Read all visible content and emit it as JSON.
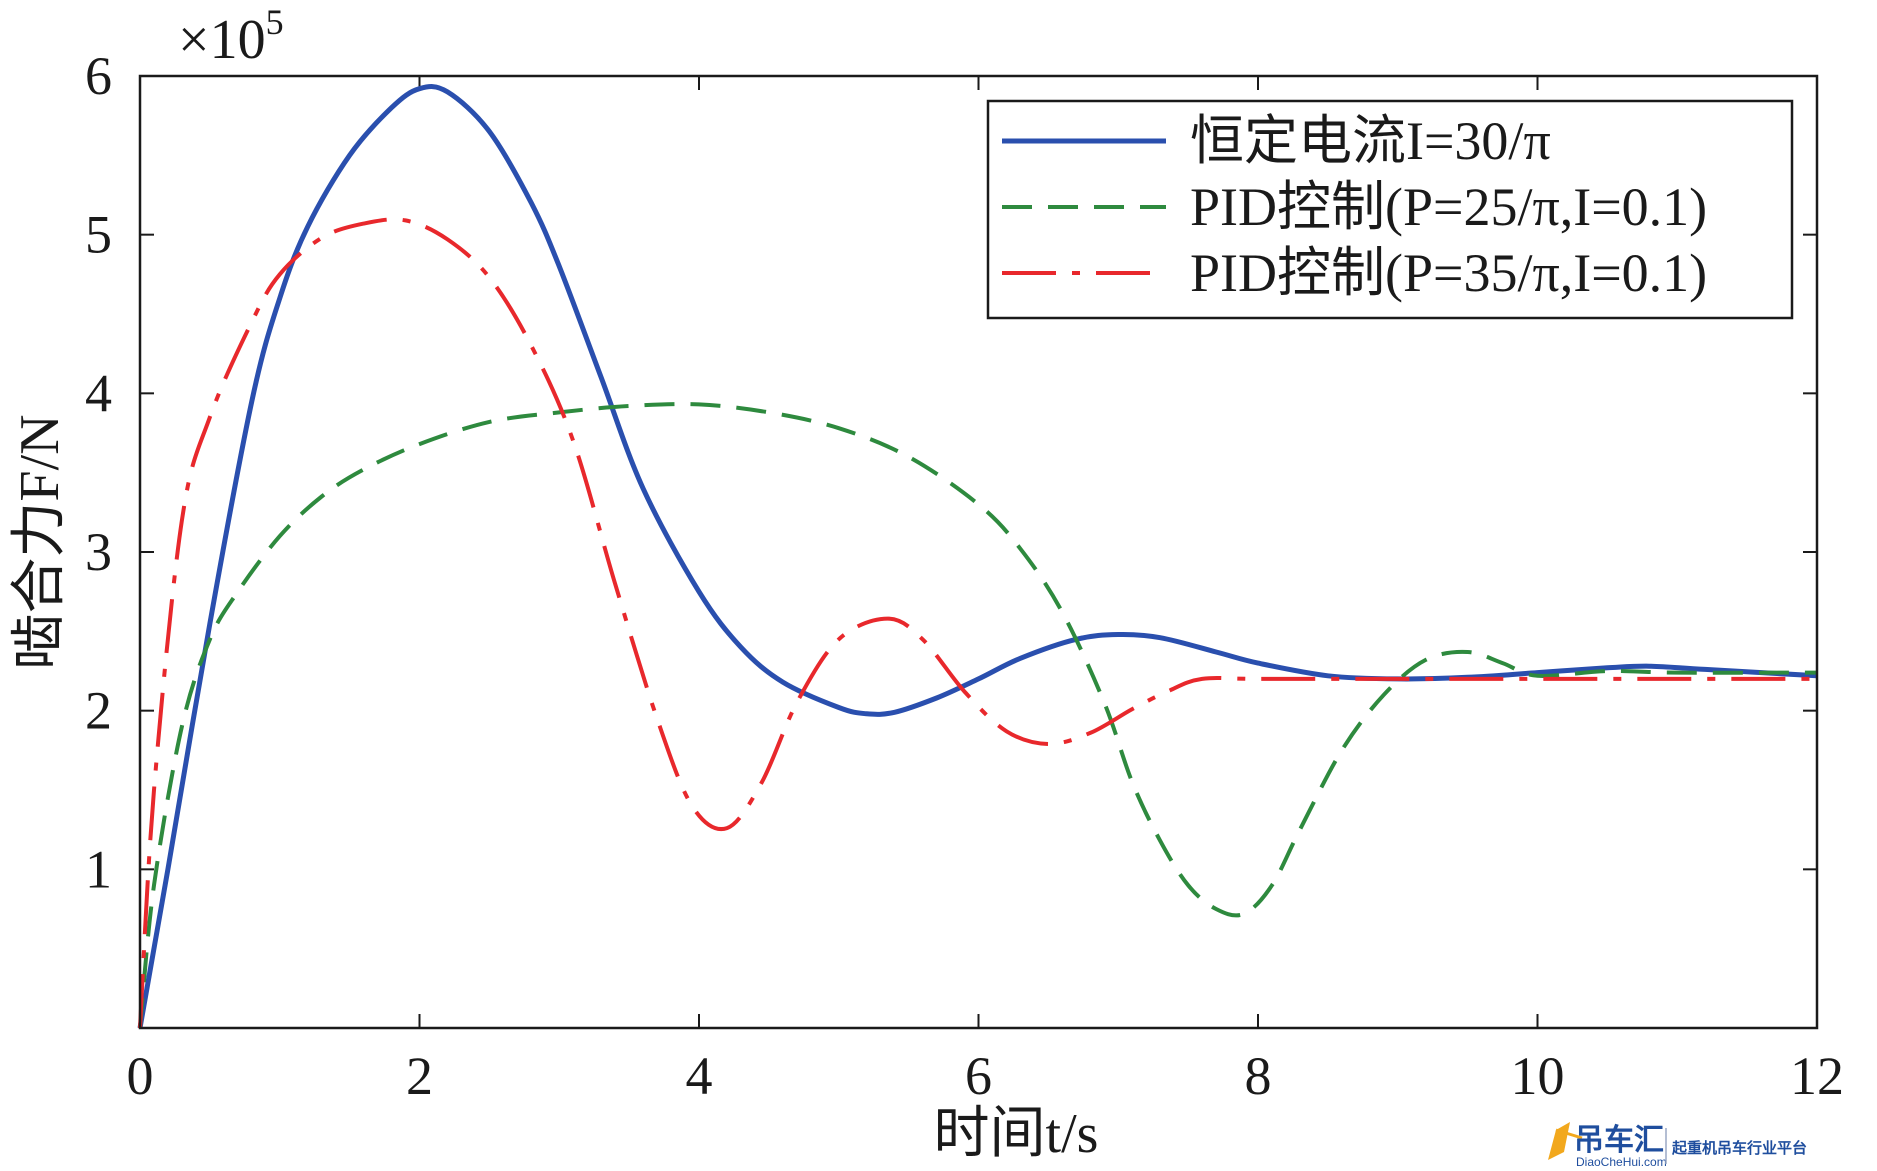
{
  "chart_data": {
    "type": "line",
    "xlabel": "时间t/s",
    "ylabel": "啮合力F/N",
    "y_multiplier": "×10",
    "y_multiplier_exp": "5",
    "xlim": [
      0,
      12
    ],
    "ylim": [
      0,
      6
    ],
    "x_ticks": [
      "0",
      "2",
      "4",
      "6",
      "8",
      "10",
      "12"
    ],
    "y_ticks": [
      "1",
      "2",
      "3",
      "4",
      "5",
      "6"
    ],
    "grid": false,
    "legend_position": "top-right",
    "series": [
      {
        "name": "恒定电流I=30/π",
        "color": "#2a4fae",
        "dash": "solid",
        "x": [
          0,
          0.2,
          0.5,
          0.8,
          1.0,
          1.2,
          1.5,
          1.8,
          2.0,
          2.2,
          2.5,
          2.8,
          3.0,
          3.3,
          3.6,
          4.0,
          4.3,
          4.6,
          5.0,
          5.2,
          5.4,
          5.7,
          6.0,
          6.3,
          6.7,
          7.0,
          7.3,
          7.7,
          8.0,
          8.5,
          9.0,
          9.5,
          10.0,
          10.5,
          10.8,
          11.2,
          12.0
        ],
        "y": [
          0,
          1.0,
          2.55,
          3.95,
          4.6,
          5.05,
          5.5,
          5.8,
          5.92,
          5.9,
          5.65,
          5.2,
          4.8,
          4.1,
          3.4,
          2.75,
          2.4,
          2.18,
          2.02,
          1.98,
          1.99,
          2.08,
          2.2,
          2.33,
          2.45,
          2.48,
          2.46,
          2.37,
          2.3,
          2.22,
          2.2,
          2.21,
          2.24,
          2.27,
          2.28,
          2.26,
          2.22
        ]
      },
      {
        "name": "PID控制(P=25/π,I=0.1)",
        "color": "#2e8a3e",
        "dash": "dashed",
        "x": [
          0,
          0.1,
          0.3,
          0.5,
          0.7,
          1.0,
          1.3,
          1.6,
          2.0,
          2.5,
          3.0,
          3.5,
          4.0,
          4.5,
          5.0,
          5.5,
          6.0,
          6.3,
          6.6,
          6.9,
          7.1,
          7.3,
          7.5,
          7.7,
          7.9,
          8.1,
          8.3,
          8.6,
          8.9,
          9.2,
          9.5,
          9.75,
          10.0,
          10.5,
          11.0,
          12.0
        ],
        "y": [
          0,
          0.9,
          1.9,
          2.45,
          2.75,
          3.1,
          3.35,
          3.52,
          3.68,
          3.82,
          3.88,
          3.92,
          3.93,
          3.88,
          3.78,
          3.6,
          3.3,
          3.02,
          2.62,
          2.05,
          1.55,
          1.18,
          0.9,
          0.75,
          0.72,
          0.9,
          1.25,
          1.75,
          2.1,
          2.32,
          2.37,
          2.3,
          2.22,
          2.25,
          2.24,
          2.24
        ]
      },
      {
        "name": "PID控制(P=35/π,I=0.1)",
        "color": "#e8282c",
        "dash": "dashdot",
        "x": [
          0,
          0.1,
          0.3,
          0.5,
          0.8,
          1.0,
          1.3,
          1.6,
          1.9,
          2.2,
          2.5,
          2.8,
          3.1,
          3.4,
          3.7,
          3.95,
          4.2,
          4.45,
          4.7,
          5.0,
          5.35,
          5.6,
          5.9,
          6.2,
          6.5,
          6.8,
          7.1,
          7.35,
          7.6,
          8.0,
          9.0,
          10.0,
          11.0,
          12.0
        ],
        "y": [
          0,
          1.5,
          3.2,
          3.85,
          4.45,
          4.75,
          4.98,
          5.07,
          5.09,
          4.97,
          4.73,
          4.3,
          3.7,
          2.8,
          1.95,
          1.4,
          1.26,
          1.55,
          2.05,
          2.45,
          2.58,
          2.45,
          2.12,
          1.87,
          1.79,
          1.86,
          2.01,
          2.12,
          2.2,
          2.2,
          2.2,
          2.2,
          2.2,
          2.2
        ]
      }
    ]
  },
  "watermark": {
    "brand": "吊车汇",
    "domain": "DiaoCheHui.com",
    "slogan": "起重机吊车行业平台",
    "color": "#1f4e9e"
  }
}
